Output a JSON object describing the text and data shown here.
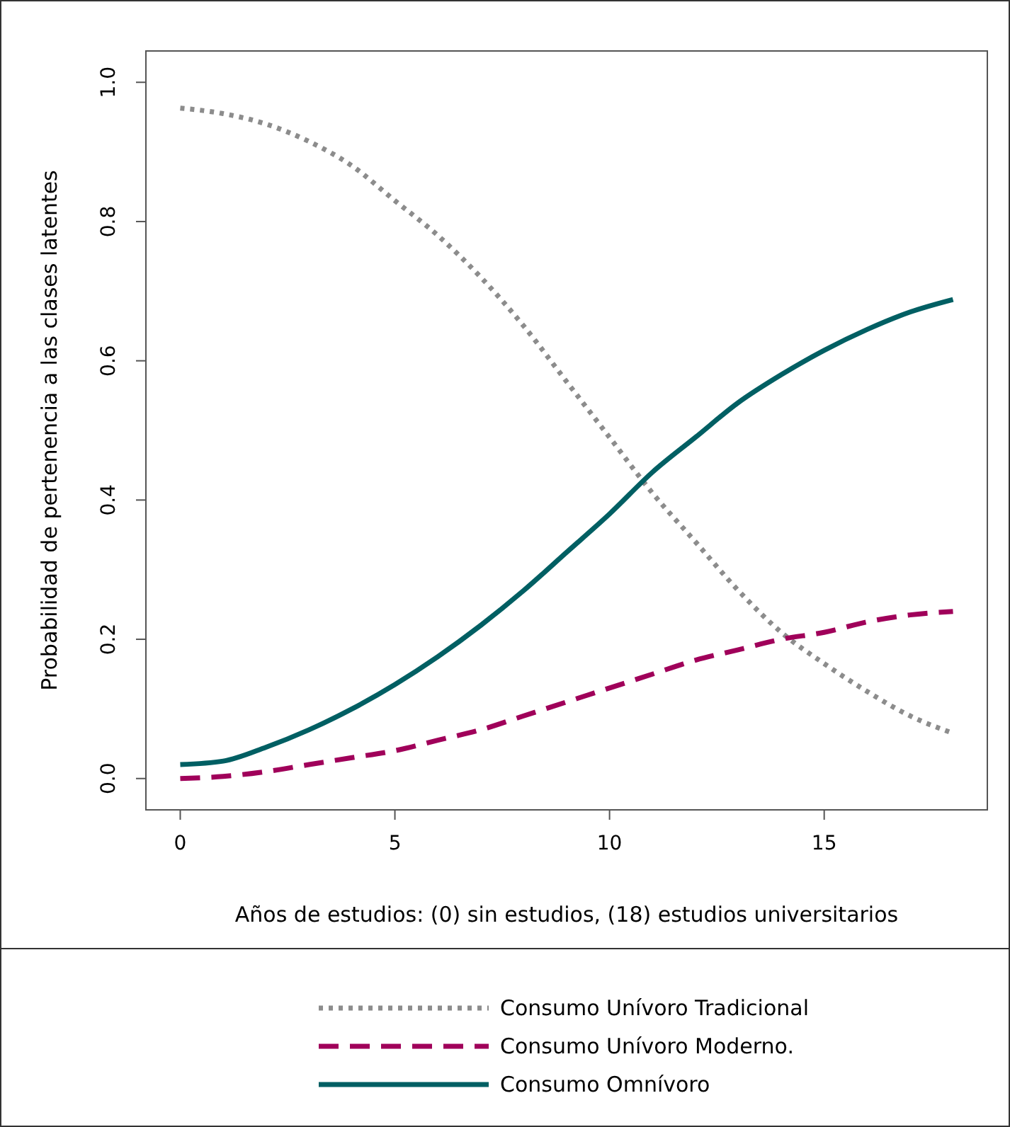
{
  "chart_data": {
    "type": "line",
    "xlabel": "Años de estudios: (0) sin estudios, (18) estudios universitarios",
    "ylabel": "Probabilidad de pertenencia a las clases latentes",
    "x": [
      0,
      1,
      2,
      3,
      4,
      5,
      6,
      7,
      8,
      9,
      10,
      11,
      12,
      13,
      14,
      15,
      16,
      17,
      18
    ],
    "series": [
      {
        "name": "Consumo Unívoro Tradicional",
        "color": "#8c8c8c",
        "line_style": "dotted",
        "values": [
          0.963,
          0.955,
          0.94,
          0.915,
          0.88,
          0.83,
          0.78,
          0.72,
          0.65,
          0.57,
          0.49,
          0.41,
          0.34,
          0.27,
          0.21,
          0.165,
          0.125,
          0.09,
          0.065
        ]
      },
      {
        "name": "Consumo Unívoro Moderno.",
        "color": "#a0005a",
        "line_style": "dashed",
        "values": [
          0,
          0.003,
          0.01,
          0.02,
          0.03,
          0.04,
          0.055,
          0.07,
          0.09,
          0.11,
          0.13,
          0.15,
          0.17,
          0.185,
          0.2,
          0.21,
          0.225,
          0.235,
          0.24
        ]
      },
      {
        "name": "Consumo Omnívoro",
        "color": "#005f63",
        "line_style": "solid",
        "values": [
          0.02,
          0.025,
          0.045,
          0.07,
          0.1,
          0.135,
          0.175,
          0.22,
          0.27,
          0.325,
          0.38,
          0.44,
          0.49,
          0.54,
          0.58,
          0.615,
          0.645,
          0.67,
          0.688
        ]
      }
    ],
    "xlim": [
      -0.8,
      18.8
    ],
    "ylim": [
      -0.045,
      1.045
    ],
    "xticks": [
      0,
      5,
      10,
      15
    ],
    "yticks": [
      {
        "value": 0,
        "label": "0.0"
      },
      {
        "value": 0.2,
        "label": "0.2"
      },
      {
        "value": 0.4,
        "label": "0.4"
      },
      {
        "value": 0.6,
        "label": "0.6"
      },
      {
        "value": 0.8,
        "label": "0.8"
      },
      {
        "value": 1,
        "label": "1.0"
      }
    ],
    "legend": "bottom",
    "grid": false
  }
}
